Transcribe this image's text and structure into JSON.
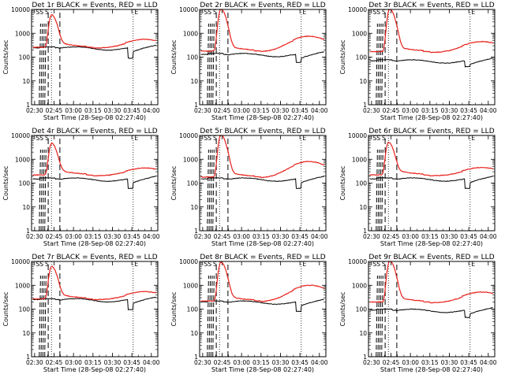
{
  "chart_data": {
    "type": "line",
    "y_scale": "log",
    "ylim": [
      1,
      10000
    ],
    "y_ticks": [
      1,
      10,
      100,
      1000,
      10000
    ],
    "y_tick_labels": [
      "1",
      "10",
      "100",
      "1000",
      "10000"
    ],
    "x_ticks": [
      "02:30",
      "02:45",
      "03:00",
      "03:15",
      "03:30",
      "03:45",
      "04:00"
    ],
    "xlabel": "Start Time (28-Sep-08 02:27:40)",
    "ylabel": "Counts/sec",
    "legend": "none",
    "grid": false,
    "series_colors": {
      "events": "#000000",
      "lld": "#e8221c"
    },
    "panels": [
      {
        "title": "Det 1r BLACK = Events, RED = LLD",
        "flags": [
          "SS",
          "S",
          "E"
        ],
        "lld": {
          "base": 260,
          "peak": 5500,
          "peak_time": "02:43",
          "bump": 560,
          "bump_time": "03:55"
        },
        "events": {
          "base": 245,
          "dip": 90
        }
      },
      {
        "title": "Det 2r BLACK = Events, RED = LLD",
        "flags": [
          "SS",
          "S",
          "E"
        ],
        "lld": {
          "base": 180,
          "peak": 10000,
          "peak_time": "02:44",
          "bump": 750,
          "bump_time": "03:52"
        },
        "events": {
          "base": 130,
          "dip": 60
        }
      },
      {
        "title": "Det 3r BLACK = Events, RED = LLD",
        "flags": [
          "SS",
          "S",
          "E"
        ],
        "lld": {
          "base": 170,
          "peak": 10000,
          "peak_time": "02:44",
          "bump": 450,
          "bump_time": "03:55"
        },
        "events": {
          "base": 70,
          "dip": 40
        }
      },
      {
        "title": "Det 4r BLACK = Events, RED = LLD",
        "flags": [
          "SS",
          "S",
          "E"
        ],
        "lld": {
          "base": 220,
          "peak": 4300,
          "peak_time": "02:43",
          "bump": 430,
          "bump_time": "03:55"
        },
        "events": {
          "base": 150,
          "dip": 60
        }
      },
      {
        "title": "Det 5r BLACK = Events, RED = LLD",
        "flags": [
          "SS",
          "S",
          "E"
        ],
        "lld": {
          "base": 180,
          "peak": 10000,
          "peak_time": "02:44",
          "bump": 800,
          "bump_time": "03:52"
        },
        "events": {
          "base": 150,
          "dip": 60
        }
      },
      {
        "title": "Det 6r BLACK = Events, RED = LLD",
        "flags": [
          "SS",
          "S",
          "E"
        ],
        "lld": {
          "base": 220,
          "peak": 4800,
          "peak_time": "02:43",
          "bump": 450,
          "bump_time": "03:55"
        },
        "events": {
          "base": 150,
          "dip": 60
        }
      },
      {
        "title": "Det 7r BLACK = Events, RED = LLD",
        "flags": [
          "SS",
          "S",
          "E"
        ],
        "lld": {
          "base": 270,
          "peak": 5800,
          "peak_time": "02:43",
          "bump": 540,
          "bump_time": "03:55"
        },
        "events": {
          "base": 250,
          "dip": 95
        }
      },
      {
        "title": "Det 8r BLACK = Events, RED = LLD",
        "flags": [
          "SS",
          "S",
          "E"
        ],
        "lld": {
          "base": 220,
          "peak": 9000,
          "peak_time": "02:44",
          "bump": 1000,
          "bump_time": "03:53"
        },
        "events": {
          "base": 200,
          "dip": 80
        }
      },
      {
        "title": "Det 9r BLACK = Events, RED = LLD",
        "flags": [
          "SS",
          "S",
          "E"
        ],
        "lld": {
          "base": 200,
          "peak": 10000,
          "peak_time": "02:44",
          "bump": 520,
          "bump_time": "03:55"
        },
        "events": {
          "base": 90,
          "dip": 45
        }
      }
    ]
  }
}
